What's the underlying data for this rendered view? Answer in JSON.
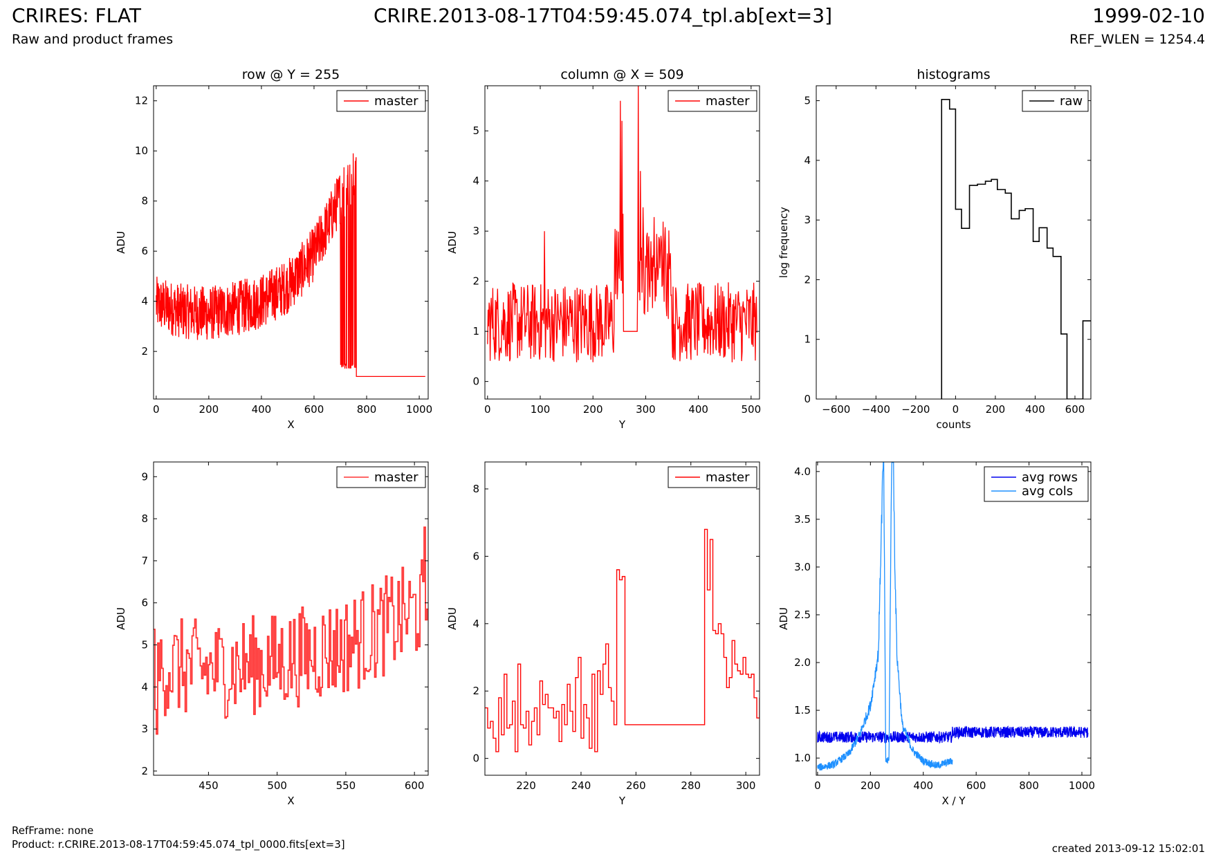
{
  "header": {
    "title": "CRIRES: FLAT",
    "subtitle": "Raw and product frames",
    "center_title": "CRIRE.2013-08-17T04:59:45.074_tpl.ab[ext=3]",
    "date": "1999-02-10",
    "ref_wlen": "REF_WLEN = 1254.4"
  },
  "footer": {
    "ref_frame": "RefFrame: none",
    "product": "Product: r.CRIRE.2013-08-17T04:59:45.074_tpl_0000.fits[ext=3]",
    "created": "created 2013-09-12 15:02:01"
  },
  "colors": {
    "red": "#ff0000",
    "dark_blue": "#0000ee",
    "light_blue": "#1e90ff",
    "black": "#000000"
  },
  "chart_data": [
    {
      "id": "row",
      "type": "line",
      "title": "row @ Y = 255",
      "xlabel": "X",
      "ylabel": "ADU",
      "xlim": [
        -10,
        1034
      ],
      "ylim": [
        0.1,
        12.6
      ],
      "xticks": [
        0,
        200,
        400,
        600,
        800,
        1000
      ],
      "yticks": [
        2,
        4,
        6,
        8,
        10,
        12
      ],
      "legend": {
        "position": "top-right"
      },
      "series": [
        {
          "name": "master",
          "color": "#ff0000",
          "trend_x": [
            0,
            100,
            200,
            300,
            400,
            500,
            550,
            600,
            650,
            700,
            760
          ],
          "trend_y": [
            3.9,
            3.6,
            3.5,
            3.7,
            4.0,
            4.6,
            5.2,
            5.9,
            7.0,
            8.2,
            9.0
          ],
          "noise_amp": 1.1,
          "dropouts_x_range": [
            700,
            760
          ],
          "dropout_value": 1.0,
          "flat_after_x": 760,
          "flat_value": 1.0,
          "x_max": 1023
        }
      ]
    },
    {
      "id": "column",
      "type": "line",
      "title": "column @ X = 509",
      "xlabel": "Y",
      "ylabel": "ADU",
      "xlim": [
        -5,
        516
      ],
      "ylim": [
        -0.35,
        5.9
      ],
      "xticks": [
        0,
        100,
        200,
        300,
        400,
        500
      ],
      "yticks": [
        0,
        1,
        2,
        3,
        4,
        5
      ],
      "legend": {
        "position": "top-right"
      },
      "series": [
        {
          "name": "master",
          "color": "#ff0000",
          "baseline": 1.1,
          "noise_amp": 0.8,
          "peaks": [
            {
              "x": 108,
              "y": 3.0
            },
            {
              "x": 252,
              "y": 5.6
            },
            {
              "x": 255,
              "y": 5.2
            },
            {
              "x": 286,
              "y": 5.9
            },
            {
              "x": 290,
              "y": 4.2
            }
          ],
          "flat_range": [
            258,
            284
          ],
          "flat_value": 1.0,
          "x_max": 511
        }
      ]
    },
    {
      "id": "histograms",
      "type": "bar",
      "title": "histograms",
      "xlabel": "counts",
      "ylabel": "log frequency",
      "xlim": [
        -700,
        680
      ],
      "ylim": [
        0,
        5.25
      ],
      "xticks": [
        -600,
        -400,
        -200,
        0,
        200,
        400,
        600
      ],
      "yticks": [
        0,
        1,
        2,
        3,
        4,
        5
      ],
      "legend": {
        "position": "top-right"
      },
      "series": [
        {
          "name": "raw",
          "color": "#000000",
          "edges": [
            -70,
            -30,
            0,
            30,
            70,
            110,
            150,
            180,
            210,
            250,
            280,
            320,
            350,
            390,
            420,
            460,
            490,
            530,
            560,
            600,
            640,
            680
          ],
          "values": [
            5.02,
            4.86,
            3.18,
            2.86,
            3.58,
            3.6,
            3.65,
            3.68,
            3.51,
            3.45,
            3.02,
            3.16,
            3.19,
            2.64,
            2.87,
            2.53,
            2.39,
            1.09,
            0.0,
            0.0,
            1.31
          ]
        }
      ]
    },
    {
      "id": "row-zoom",
      "type": "line",
      "title": "",
      "xlabel": "X",
      "ylabel": "ADU",
      "xlim": [
        410,
        610
      ],
      "ylim": [
        1.9,
        9.35
      ],
      "xticks": [
        450,
        500,
        550,
        600
      ],
      "yticks": [
        2,
        3,
        4,
        5,
        6,
        7,
        8,
        9
      ],
      "legend": {
        "position": "top-right"
      },
      "series": [
        {
          "name": "master",
          "color": "#ff3333",
          "trend_x": [
            410,
            450,
            500,
            550,
            600,
            610
          ],
          "trend_y": [
            4.5,
            4.4,
            4.6,
            5.0,
            5.8,
            6.0
          ],
          "noise_amp": 1.2,
          "x_min": 410,
          "x_max": 610,
          "highlights": [
            {
              "x": 412,
              "y": 2.4
            },
            {
              "x": 607,
              "y": 7.8
            }
          ]
        }
      ]
    },
    {
      "id": "column-zoom",
      "type": "line",
      "title": "",
      "xlabel": "Y",
      "ylabel": "ADU",
      "xlim": [
        205,
        305
      ],
      "ylim": [
        -0.5,
        8.8
      ],
      "xticks": [
        220,
        240,
        260,
        280,
        300
      ],
      "yticks": [
        0,
        2,
        4,
        6,
        8
      ],
      "legend": {
        "position": "top-right"
      },
      "series": [
        {
          "name": "master",
          "color": "#ff0000",
          "x": [
            205,
            206,
            207,
            208,
            209,
            210,
            211,
            212,
            213,
            214,
            215,
            216,
            217,
            218,
            219,
            220,
            221,
            222,
            223,
            224,
            225,
            226,
            227,
            228,
            229,
            230,
            231,
            232,
            233,
            234,
            235,
            236,
            237,
            238,
            239,
            240,
            241,
            242,
            243,
            244,
            245,
            246,
            247,
            248,
            249,
            250,
            251,
            252,
            253,
            254,
            255,
            256,
            285,
            286,
            287,
            288,
            289,
            290,
            291,
            292,
            293,
            294,
            295,
            296,
            297,
            298,
            299,
            300,
            301,
            302,
            303,
            304,
            305
          ],
          "y": [
            1.5,
            0.9,
            1.1,
            0.6,
            0.2,
            1.8,
            0.7,
            2.5,
            0.9,
            1.0,
            1.7,
            0.2,
            2.8,
            1.0,
            0.9,
            1.4,
            0.4,
            1.1,
            1.5,
            0.7,
            2.3,
            1.6,
            1.9,
            1.5,
            1.5,
            1.2,
            1.4,
            0.5,
            1.6,
            1.0,
            2.2,
            1.4,
            0.8,
            2.4,
            3.0,
            0.6,
            1.6,
            1.2,
            0.3,
            2.5,
            0.2,
            2.6,
            1.9,
            2.8,
            3.4,
            2.1,
            1.7,
            1.0,
            5.6,
            5.3,
            5.4,
            1.0,
            6.8,
            5.0,
            6.5,
            3.8,
            3.7,
            4.0,
            3.7,
            3.0,
            2.1,
            2.4,
            3.5,
            2.8,
            2.6,
            2.5,
            3.0,
            2.5,
            2.4,
            2.5,
            1.8,
            1.2,
            1.8
          ]
        }
      ]
    },
    {
      "id": "averages",
      "type": "line",
      "title": "",
      "xlabel": "X / Y",
      "ylabel": "ADU",
      "xlim": [
        -5,
        1034
      ],
      "ylim": [
        0.82,
        4.1
      ],
      "xticks": [
        0,
        200,
        400,
        600,
        800,
        1000
      ],
      "yticks": [
        1.0,
        1.5,
        2.0,
        2.5,
        3.0,
        3.5,
        4.0
      ],
      "legend": {
        "position": "top-right"
      },
      "series": [
        {
          "name": "avg rows",
          "color": "#0000ee",
          "x_range": [
            0,
            1023
          ],
          "level": 1.22,
          "right_level": 1.27,
          "step_x": 510,
          "noise_amp": 0.06
        },
        {
          "name": "avg cols",
          "color": "#1e90ff",
          "x_range": [
            0,
            511
          ],
          "anchors_x": [
            0,
            60,
            120,
            160,
            200,
            230,
            245,
            250,
            258,
            270,
            280,
            286,
            292,
            300,
            320,
            360,
            400,
            450,
            511
          ],
          "anchors_y": [
            0.9,
            0.93,
            1.05,
            1.25,
            1.55,
            2.1,
            3.8,
            4.2,
            0.97,
            0.97,
            4.1,
            4.3,
            3.1,
            2.1,
            1.35,
            1.08,
            0.97,
            0.92,
            0.97
          ]
        }
      ]
    }
  ]
}
